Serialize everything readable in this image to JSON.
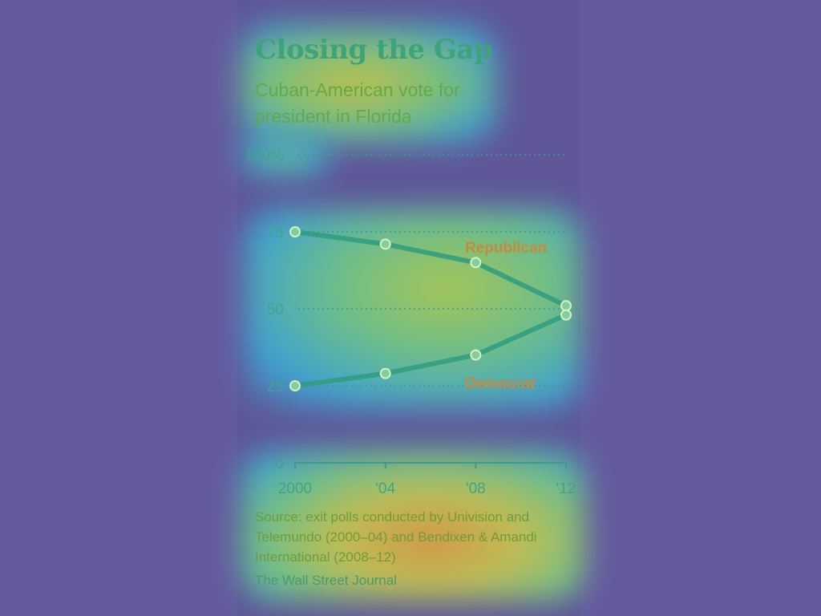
{
  "chart_data": {
    "type": "line",
    "title": "Closing the Gap",
    "subtitle": "Cuban-American vote for president in Florida",
    "x": [
      "2000",
      "'04",
      "'08",
      "'12"
    ],
    "ylim": [
      0,
      100
    ],
    "yticks": [
      "100%",
      "75",
      "50",
      "25",
      "0"
    ],
    "ytick_values": [
      100,
      75,
      50,
      25,
      0
    ],
    "grid": true,
    "series": [
      {
        "name": "Republican",
        "values": [
          75,
          71,
          65,
          51
        ]
      },
      {
        "name": "Democrat",
        "values": [
          25,
          29,
          35,
          48
        ]
      }
    ],
    "source": "Source: exit polls conducted by Univision and Telemundo (2000–04) and Bendixen & Amandi International (2008–12)",
    "credit": "The Wall Street Journal",
    "colors": {
      "line": "#2f9c7e",
      "label": "#c78a3c",
      "grid": "#3e9a8a"
    }
  }
}
